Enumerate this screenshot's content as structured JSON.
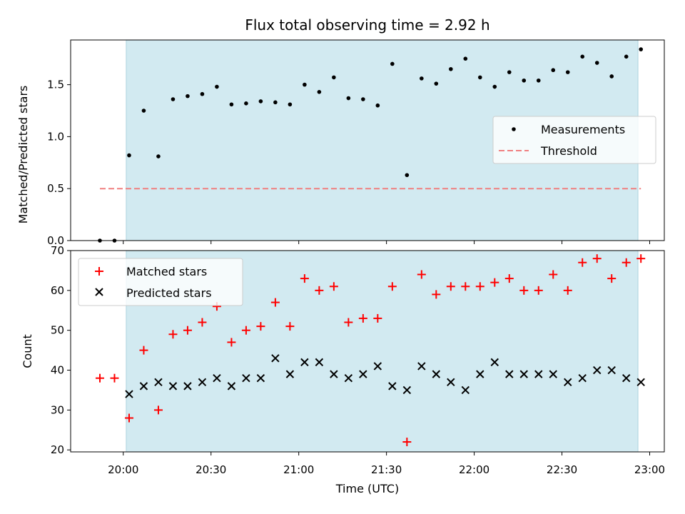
{
  "chart_data": {
    "type": "scatter",
    "title": "Flux total observing time = 2.92 h",
    "xlabel": "Time (UTC)",
    "x_tick_labels": [
      "20:00",
      "20:30",
      "21:00",
      "21:30",
      "22:00",
      "22:30",
      "23:00"
    ],
    "x_ticks_minutes": [
      0,
      30,
      60,
      90,
      120,
      150,
      180
    ],
    "xlim_minutes": [
      -18,
      185
    ],
    "observing_window_minutes": [
      1,
      176
    ],
    "observing_window_color": "#add8e6",
    "times_minutes": [
      -8,
      -3,
      2,
      7,
      12,
      17,
      22,
      27,
      32,
      37,
      42,
      47,
      52,
      57,
      62,
      67,
      72,
      77,
      82,
      87,
      92,
      97,
      102,
      107,
      112,
      117,
      122,
      127,
      132,
      137,
      142,
      147,
      152,
      157,
      162,
      167,
      172,
      177
    ],
    "panels": [
      {
        "ylabel": "Matched/Predicted stars",
        "ylim": [
          0,
          1.93
        ],
        "y_ticks": [
          "0.0",
          "0.5",
          "1.0",
          "1.5"
        ],
        "legend_position": "center-right",
        "series": [
          {
            "name": "Measurements",
            "marker": "dot",
            "color": "#000000",
            "values": [
              0.0,
              0.0,
              0.82,
              1.25,
              0.81,
              1.36,
              1.39,
              1.41,
              1.48,
              1.31,
              1.32,
              1.34,
              1.33,
              1.31,
              1.5,
              1.43,
              1.57,
              1.37,
              1.36,
              1.3,
              1.7,
              0.63,
              1.56,
              1.51,
              1.65,
              1.75,
              1.57,
              1.48,
              1.62,
              1.54,
              1.54,
              1.64,
              1.62,
              1.77,
              1.71,
              1.58,
              1.77,
              1.84
            ]
          },
          {
            "name": "Threshold",
            "marker": "dashed-line",
            "color": "#f08080",
            "value": 0.5,
            "x_range_minutes": [
              -8,
              177
            ]
          }
        ]
      },
      {
        "ylabel": "Count",
        "ylim": [
          19.5,
          70
        ],
        "y_ticks": [
          "20",
          "30",
          "40",
          "50",
          "60",
          "70"
        ],
        "legend_position": "top-left",
        "series": [
          {
            "name": "Matched stars",
            "marker": "plus",
            "color": "#ff0000",
            "values": [
              38,
              38,
              28,
              45,
              30,
              49,
              50,
              52,
              56,
              47,
              50,
              51,
              57,
              51,
              63,
              60,
              61,
              52,
              53,
              53,
              61,
              22,
              64,
              59,
              61,
              61,
              61,
              62,
              63,
              60,
              60,
              64,
              60,
              67,
              68,
              63,
              67,
              68
            ]
          },
          {
            "name": "Predicted stars",
            "marker": "x",
            "color": "#000000",
            "values": [
              null,
              null,
              34,
              36,
              37,
              36,
              36,
              37,
              38,
              36,
              38,
              38,
              43,
              39,
              42,
              42,
              39,
              38,
              39,
              41,
              36,
              35,
              41,
              39,
              37,
              35,
              39,
              42,
              39,
              39,
              39,
              39,
              37,
              38,
              40,
              40,
              38,
              37
            ]
          }
        ]
      }
    ]
  }
}
